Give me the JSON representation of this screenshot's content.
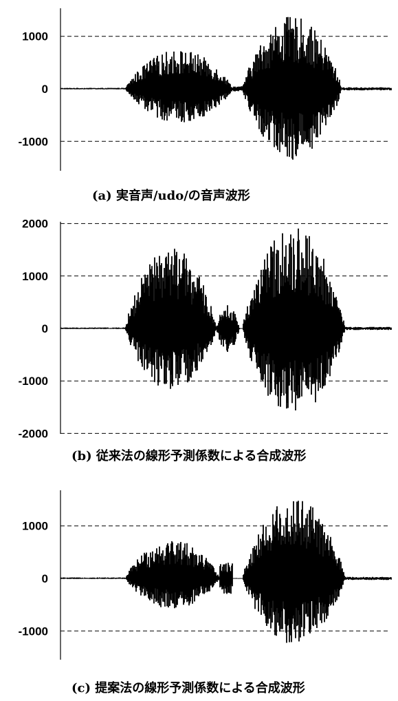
{
  "chart_data": [
    {
      "type": "line",
      "caption": "(a)  実音声/udo/の音声波形",
      "ylim": [
        -1500,
        1500
      ],
      "yticks": [
        1000,
        0,
        -1000
      ],
      "ytick_labels": [
        "1000",
        "0",
        "-1000"
      ],
      "grid": "dashed horizontal at ticks",
      "envelope": {
        "segments": [
          {
            "t_start": 0.0,
            "t_end": 0.195,
            "max": 20,
            "min": -10
          },
          {
            "t_start": 0.195,
            "t_end": 0.52,
            "max": 750,
            "min": -650
          },
          {
            "t_start": 0.52,
            "t_end": 0.55,
            "max": 50,
            "min": -50
          },
          {
            "t_start": 0.55,
            "t_end": 0.85,
            "max": 1380,
            "min": -1350
          },
          {
            "t_start": 0.85,
            "t_end": 1.0,
            "max": 30,
            "min": -30
          }
        ]
      }
    },
    {
      "type": "line",
      "caption": "(b)  従来法の線形予測係数による合成波形",
      "ylim": [
        -2000,
        2000
      ],
      "yticks": [
        2000,
        1000,
        0,
        -1000,
        -2000
      ],
      "ytick_labels": [
        "2000",
        "1000",
        "0",
        "-1000",
        "-2000"
      ],
      "grid": "dashed horizontal at ticks",
      "envelope": {
        "segments": [
          {
            "t_start": 0.0,
            "t_end": 0.195,
            "max": 20,
            "min": -10
          },
          {
            "t_start": 0.195,
            "t_end": 0.47,
            "max": 1560,
            "min": -1200
          },
          {
            "t_start": 0.47,
            "t_end": 0.54,
            "max": 450,
            "min": -450
          },
          {
            "t_start": 0.55,
            "t_end": 0.86,
            "max": 1950,
            "min": -1700
          },
          {
            "t_start": 0.86,
            "t_end": 1.0,
            "max": 30,
            "min": -30
          }
        ]
      }
    },
    {
      "type": "line",
      "caption": "(c)  提案法の線形予測係数による合成波形",
      "ylim": [
        -1500,
        1600
      ],
      "yticks": [
        1000,
        0,
        -1000
      ],
      "ytick_labels": [
        "1000",
        "0",
        "-1000"
      ],
      "grid": "dashed horizontal at ticks",
      "envelope": {
        "segments": [
          {
            "t_start": 0.0,
            "t_end": 0.195,
            "max": 20,
            "min": -10
          },
          {
            "t_start": 0.195,
            "t_end": 0.48,
            "max": 760,
            "min": -580
          },
          {
            "t_start": 0.48,
            "t_end": 0.52,
            "max": 300,
            "min": -300
          },
          {
            "t_start": 0.55,
            "t_end": 0.86,
            "max": 1560,
            "min": -1250
          },
          {
            "t_start": 0.86,
            "t_end": 1.0,
            "max": 30,
            "min": -30
          }
        ]
      }
    }
  ]
}
